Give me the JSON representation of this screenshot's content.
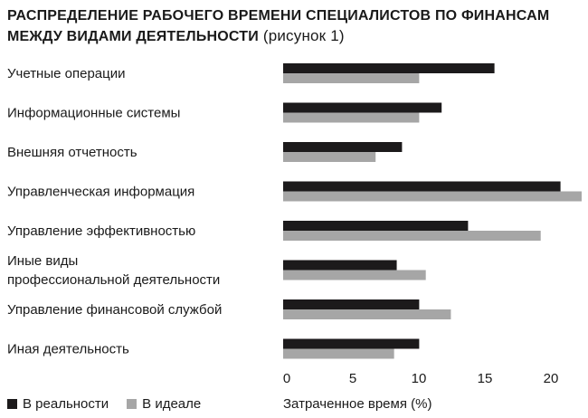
{
  "title_line1_bold": "Распределение рабочего времени специалистов по финансам",
  "title_line2_bold": "между видами деятельности",
  "title_line2_normal": " (рисунок 1)",
  "chart_data": {
    "type": "bar",
    "orientation": "horizontal",
    "categories": [
      [
        "Учетные операции"
      ],
      [
        "Информационные системы"
      ],
      [
        "Внешняя отчетность"
      ],
      [
        "Управленческая информация"
      ],
      [
        "Управление эффективностью"
      ],
      [
        "Иные виды",
        "профессиональной деятельности"
      ],
      [
        "Управление финансовой службой"
      ],
      [
        "Иная деятельность"
      ]
    ],
    "series": [
      {
        "name": "В реальности",
        "color": "#1c1a1b",
        "values": [
          16,
          12,
          9,
          21,
          14,
          8.6,
          10.3,
          10.3
        ]
      },
      {
        "name": "В идеале",
        "color": "#a6a6a6",
        "values": [
          10.3,
          10.3,
          7,
          22.6,
          19.5,
          10.8,
          12.7,
          8.4
        ]
      }
    ],
    "xticks": [
      0,
      5,
      10,
      15,
      20
    ],
    "xlim": [
      0,
      22.6
    ],
    "xlabel": "Затраченное время (%)",
    "grid": false,
    "legend_position": "bottom-left"
  }
}
